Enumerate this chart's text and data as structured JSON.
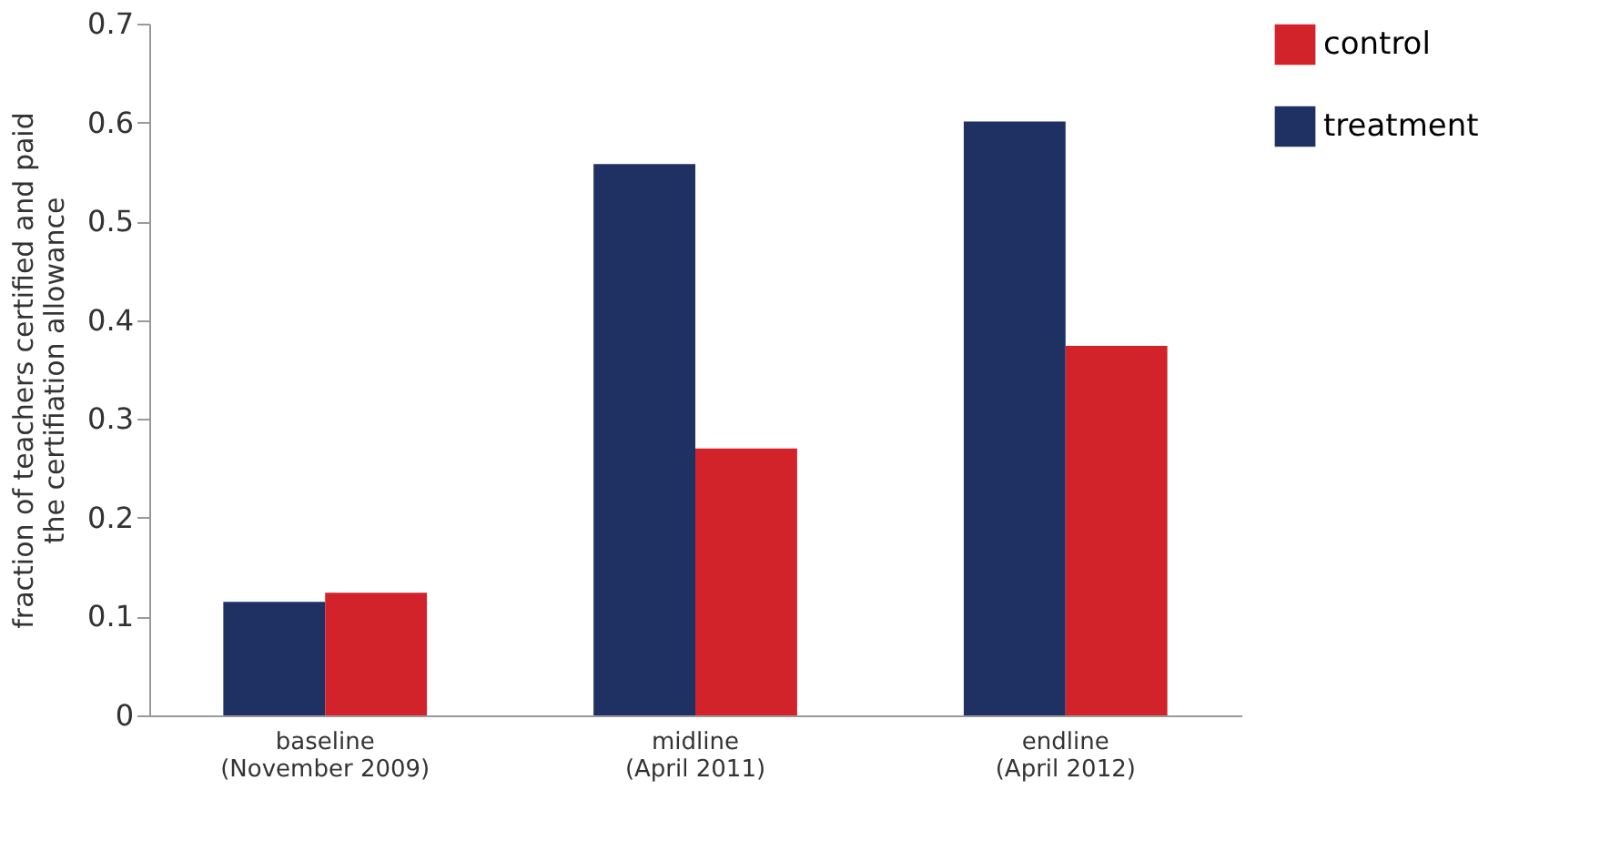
{
  "chart_data": {
    "type": "bar",
    "categories": [
      "baseline\n(November 2009)",
      "midline\n(April 2011)",
      "endline\n(April 2012)"
    ],
    "series": [
      {
        "name": "treatment",
        "color": "#1f3163",
        "values": [
          0.115,
          0.558,
          0.601
        ]
      },
      {
        "name": "control",
        "color": "#d2232a",
        "values": [
          0.124,
          0.27,
          0.374
        ]
      }
    ],
    "ylabel": "fraction of teachers certified and paid\nthe certifiation allowance",
    "ylim": [
      0,
      0.7
    ],
    "yticks": [
      0,
      0.1,
      0.2,
      0.3,
      0.4,
      0.5,
      0.6,
      0.7
    ],
    "grid": false,
    "legend": "right"
  }
}
